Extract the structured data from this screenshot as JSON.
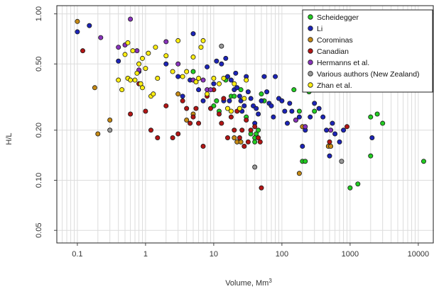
{
  "chart_data": {
    "type": "scatter",
    "x_scale": "log",
    "y_scale": "log",
    "xlim": [
      0.05,
      17000
    ],
    "ylim": [
      0.042,
      1.12
    ],
    "x_ticks": [
      0.1,
      1,
      10,
      100,
      1000,
      10000
    ],
    "x_tick_labels": [
      "0.1",
      "1",
      "10",
      "100",
      "1000",
      "10000"
    ],
    "y_ticks": [
      0.05,
      0.1,
      0.2,
      0.5,
      1.0
    ],
    "y_tick_labels": [
      "0.05",
      "0.10",
      "0.20",
      "0.50",
      "1.00"
    ],
    "xlabel": "Volume, Mm",
    "xlabel_superscript": "3",
    "ylabel": "H/L",
    "grid": true,
    "legend_position": "top-right",
    "series": [
      {
        "name": "Scheidegger",
        "color": "#22cc22",
        "points": [
          [
            5,
            0.45
          ],
          [
            10,
            0.28
          ],
          [
            11,
            0.3
          ],
          [
            12,
            0.26
          ],
          [
            15,
            0.4
          ],
          [
            18,
            0.32
          ],
          [
            20,
            0.32
          ],
          [
            25,
            0.35
          ],
          [
            30,
            0.24
          ],
          [
            35,
            0.19
          ],
          [
            40,
            0.17
          ],
          [
            40,
            0.18
          ],
          [
            42,
            0.19
          ],
          [
            45,
            0.2
          ],
          [
            50,
            0.33
          ],
          [
            55,
            0.3
          ],
          [
            150,
            0.35
          ],
          [
            180,
            0.26
          ],
          [
            200,
            0.13
          ],
          [
            220,
            0.13
          ],
          [
            250,
            0.34
          ],
          [
            300,
            0.26
          ],
          [
            1000,
            0.09
          ],
          [
            1300,
            0.095
          ],
          [
            2000,
            0.14
          ],
          [
            2000,
            0.24
          ],
          [
            2500,
            0.25
          ],
          [
            3000,
            0.22
          ],
          [
            12000,
            0.13
          ]
        ]
      },
      {
        "name": "Li",
        "color": "#1c24b8",
        "points": [
          [
            0.1,
            0.78
          ],
          [
            0.15,
            0.85
          ],
          [
            0.4,
            0.52
          ],
          [
            0.8,
            0.45
          ],
          [
            2,
            0.5
          ],
          [
            3,
            0.42
          ],
          [
            3.5,
            0.32
          ],
          [
            4.5,
            0.4
          ],
          [
            5,
            0.76
          ],
          [
            6,
            0.35
          ],
          [
            7,
            0.3
          ],
          [
            8,
            0.48
          ],
          [
            10,
            0.38
          ],
          [
            11,
            0.52
          ],
          [
            13,
            0.5
          ],
          [
            14,
            0.3
          ],
          [
            15,
            0.54
          ],
          [
            16,
            0.42
          ],
          [
            17,
            0.3
          ],
          [
            18,
            0.4
          ],
          [
            20,
            0.35
          ],
          [
            21,
            0.44
          ],
          [
            22,
            0.36
          ],
          [
            24,
            0.32
          ],
          [
            25,
            0.3
          ],
          [
            26,
            0.26
          ],
          [
            28,
            0.28
          ],
          [
            30,
            0.42
          ],
          [
            32,
            0.34
          ],
          [
            35,
            0.31
          ],
          [
            38,
            0.28
          ],
          [
            40,
            0.22
          ],
          [
            42,
            0.27
          ],
          [
            45,
            0.25
          ],
          [
            50,
            0.3
          ],
          [
            55,
            0.42
          ],
          [
            60,
            0.34
          ],
          [
            65,
            0.29
          ],
          [
            70,
            0.28
          ],
          [
            75,
            0.24
          ],
          [
            80,
            0.42
          ],
          [
            90,
            0.31
          ],
          [
            100,
            0.3
          ],
          [
            110,
            0.26
          ],
          [
            120,
            0.22
          ],
          [
            130,
            0.29
          ],
          [
            140,
            0.26
          ],
          [
            160,
            0.23
          ],
          [
            180,
            0.24
          ],
          [
            200,
            0.16
          ],
          [
            220,
            0.2
          ],
          [
            260,
            0.24
          ],
          [
            300,
            0.29
          ],
          [
            350,
            0.27
          ],
          [
            400,
            0.24
          ],
          [
            450,
            0.2
          ],
          [
            500,
            0.14
          ],
          [
            550,
            0.22
          ],
          [
            600,
            0.19
          ],
          [
            700,
            0.17
          ],
          [
            800,
            0.2
          ],
          [
            2100,
            0.18
          ]
        ]
      },
      {
        "name": "Corominas",
        "color": "#c68a14",
        "points": [
          [
            0.1,
            0.9
          ],
          [
            0.18,
            0.36
          ],
          [
            0.2,
            0.19
          ],
          [
            0.3,
            0.23
          ],
          [
            3,
            0.33
          ],
          [
            4,
            0.23
          ],
          [
            5,
            0.25
          ],
          [
            20,
            0.18
          ],
          [
            22,
            0.17
          ],
          [
            25,
            0.17
          ],
          [
            180,
            0.11
          ],
          [
            200,
            0.21
          ],
          [
            480,
            0.16
          ],
          [
            520,
            0.16
          ]
        ]
      },
      {
        "name": "Canadian",
        "color": "#b31515",
        "points": [
          [
            0.12,
            0.6
          ],
          [
            0.6,
            0.25
          ],
          [
            0.8,
            0.38
          ],
          [
            1,
            0.26
          ],
          [
            1.2,
            0.2
          ],
          [
            1.5,
            0.18
          ],
          [
            2,
            0.28
          ],
          [
            2.5,
            0.18
          ],
          [
            3,
            0.19
          ],
          [
            3.5,
            0.3
          ],
          [
            4,
            0.27
          ],
          [
            4.5,
            0.22
          ],
          [
            5,
            0.24
          ],
          [
            5.5,
            0.27
          ],
          [
            6,
            0.22
          ],
          [
            7,
            0.16
          ],
          [
            8,
            0.32
          ],
          [
            9,
            0.27
          ],
          [
            10,
            0.35
          ],
          [
            12,
            0.25
          ],
          [
            13,
            0.22
          ],
          [
            14,
            0.31
          ],
          [
            16,
            0.18
          ],
          [
            18,
            0.24
          ],
          [
            20,
            0.2
          ],
          [
            22,
            0.26
          ],
          [
            24,
            0.18
          ],
          [
            26,
            0.2
          ],
          [
            28,
            0.16
          ],
          [
            30,
            0.23
          ],
          [
            32,
            0.17
          ],
          [
            35,
            0.2
          ],
          [
            40,
            0.21
          ],
          [
            45,
            0.18
          ],
          [
            48,
            0.17
          ],
          [
            50,
            0.09
          ],
          [
            500,
            0.17
          ],
          [
            900,
            0.21
          ]
        ]
      },
      {
        "name": "Hermanns et al.",
        "color": "#8833bb",
        "points": [
          [
            0.22,
            0.72
          ],
          [
            0.4,
            0.63
          ],
          [
            0.5,
            0.65
          ],
          [
            0.6,
            0.93
          ],
          [
            0.75,
            0.6
          ],
          [
            0.8,
            0.46
          ],
          [
            2,
            0.68
          ],
          [
            3,
            0.5
          ],
          [
            5,
            0.4
          ],
          [
            7,
            0.4
          ],
          [
            8,
            0.35
          ],
          [
            9,
            0.35
          ],
          [
            160,
            0.23
          ],
          [
            220,
            0.21
          ],
          [
            520,
            0.2
          ]
        ]
      },
      {
        "name": "Various authors (New Zealand)",
        "color": "#999999",
        "points": [
          [
            0.3,
            0.2
          ],
          [
            13,
            0.64
          ],
          [
            40,
            0.12
          ],
          [
            750,
            0.13
          ]
        ]
      },
      {
        "name": "Zhan et al.",
        "color": "#ffee11",
        "points": [
          [
            0.4,
            0.4
          ],
          [
            0.45,
            0.35
          ],
          [
            0.5,
            0.57
          ],
          [
            0.55,
            0.41
          ],
          [
            0.55,
            0.67
          ],
          [
            0.6,
            0.4
          ],
          [
            0.65,
            0.6
          ],
          [
            0.7,
            0.4
          ],
          [
            0.75,
            0.44
          ],
          [
            0.8,
            0.5
          ],
          [
            0.85,
            0.38
          ],
          [
            0.9,
            0.36
          ],
          [
            0.9,
            0.54
          ],
          [
            1,
            0.47
          ],
          [
            1.1,
            0.58
          ],
          [
            1.2,
            0.32
          ],
          [
            1.3,
            0.33
          ],
          [
            1.4,
            0.63
          ],
          [
            1.5,
            0.41
          ],
          [
            2,
            0.56
          ],
          [
            2.5,
            0.45
          ],
          [
            3,
            0.69
          ],
          [
            3.5,
            0.42
          ],
          [
            4,
            0.45
          ],
          [
            5,
            0.55
          ],
          [
            5.5,
            0.39
          ],
          [
            6,
            0.41
          ],
          [
            6.5,
            0.63
          ],
          [
            7,
            0.69
          ],
          [
            8,
            0.33
          ],
          [
            10,
            0.41
          ],
          [
            12,
            0.38
          ],
          [
            14,
            0.41
          ],
          [
            16,
            0.27
          ],
          [
            18,
            0.26
          ],
          [
            20,
            0.38
          ],
          [
            24,
            0.27
          ],
          [
            28,
            0.31
          ],
          [
            30,
            0.4
          ]
        ]
      }
    ]
  }
}
